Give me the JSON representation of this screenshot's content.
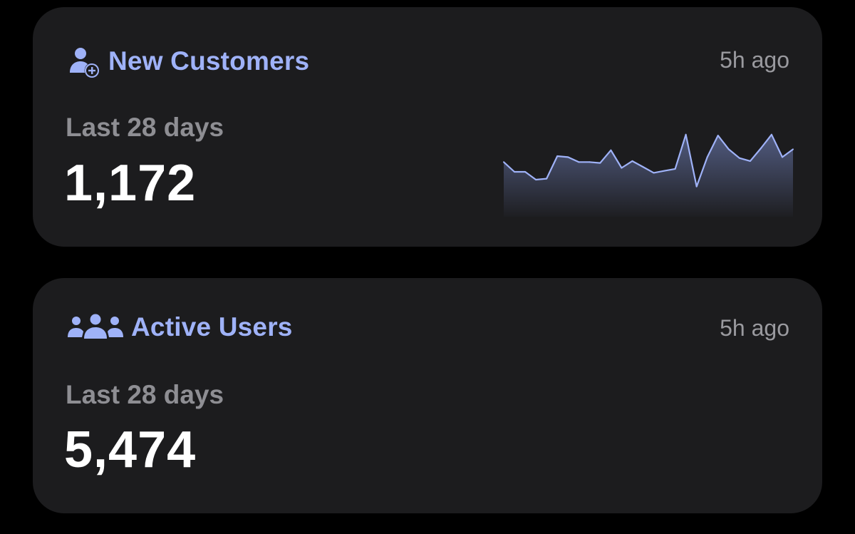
{
  "cards": [
    {
      "title": "New Customers",
      "icon": "person-add-icon",
      "timestamp": "5h ago",
      "period": "Last 28 days",
      "value": "1,172",
      "accent_color": "#9fb2f8"
    },
    {
      "title": "Active Users",
      "icon": "people-group-icon",
      "timestamp": "5h ago",
      "period": "Last 28 days",
      "value": "5,474",
      "accent_color": "#9fb2f8"
    }
  ],
  "chart_data": {
    "type": "area",
    "x": [
      1,
      2,
      3,
      4,
      5,
      6,
      7,
      8,
      9,
      10,
      11,
      12,
      13,
      14,
      15,
      16,
      17,
      18,
      19,
      20,
      21,
      22,
      23,
      24,
      25,
      26,
      27,
      28
    ],
    "values": [
      50,
      40,
      40,
      32,
      33,
      56,
      55,
      50,
      50,
      49,
      62,
      44,
      51,
      45,
      39,
      41,
      43,
      78,
      25,
      55,
      77,
      63,
      54,
      51,
      64,
      78,
      55,
      63
    ],
    "color": "#9fb2f8"
  }
}
